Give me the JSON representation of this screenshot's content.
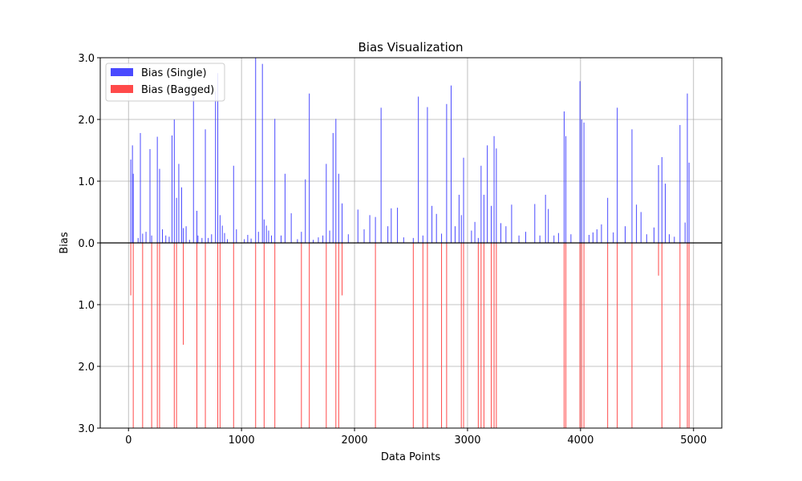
{
  "chart_data": {
    "type": "bar",
    "title": "Bias Visualization",
    "xlabel": "Data Points",
    "ylabel": "Bias",
    "xlim": [
      -250,
      5250
    ],
    "ylim": [
      -3.0,
      3.0
    ],
    "x_ticks": [
      0,
      1000,
      2000,
      3000,
      4000,
      5000
    ],
    "y_ticks": [
      {
        "value": 3.0,
        "label": "3.0"
      },
      {
        "value": 2.0,
        "label": "2.0"
      },
      {
        "value": 1.0,
        "label": "1.0"
      },
      {
        "value": 0.0,
        "label": "0.0"
      },
      {
        "value": -1.0,
        "label": "1.0"
      },
      {
        "value": -2.0,
        "label": "2.0"
      },
      {
        "value": -3.0,
        "label": "3.0"
      }
    ],
    "grid": true,
    "zero_line": true,
    "legend_position": "top-left",
    "legend": [
      {
        "label": "Bias (Single)",
        "color": "#4a4aff"
      },
      {
        "label": "Bias (Bagged)",
        "color": "#ff4a4a"
      }
    ],
    "series": [
      {
        "name": "Bias (Single)",
        "color": "#4a4aff",
        "x": [
          20,
          35,
          42,
          85,
          105,
          125,
          155,
          190,
          205,
          255,
          275,
          300,
          330,
          360,
          385,
          405,
          425,
          445,
          470,
          485,
          510,
          540,
          575,
          605,
          615,
          650,
          680,
          705,
          735,
          770,
          790,
          810,
          830,
          850,
          875,
          930,
          955,
          1025,
          1055,
          1085,
          1125,
          1150,
          1185,
          1200,
          1220,
          1240,
          1265,
          1295,
          1350,
          1385,
          1440,
          1495,
          1530,
          1565,
          1600,
          1635,
          1680,
          1720,
          1750,
          1780,
          1810,
          1835,
          1860,
          1890,
          1945,
          2030,
          2085,
          2135,
          2185,
          2235,
          2295,
          2325,
          2380,
          2435,
          2520,
          2565,
          2605,
          2645,
          2685,
          2725,
          2770,
          2815,
          2855,
          2890,
          2925,
          2945,
          2965,
          3035,
          3065,
          3095,
          3120,
          3145,
          3175,
          3210,
          3235,
          3255,
          3295,
          3340,
          3390,
          3455,
          3515,
          3595,
          3640,
          3690,
          3715,
          3765,
          3805,
          3855,
          3870,
          3915,
          3995,
          4010,
          4030,
          4075,
          4110,
          4145,
          4185,
          4240,
          4290,
          4325,
          4395,
          4455,
          4495,
          4535,
          4585,
          4650,
          4690,
          4720,
          4750,
          4785,
          4830,
          4880,
          4925,
          4945,
          4960
        ],
        "values": [
          1.35,
          1.58,
          1.12,
          0.08,
          1.78,
          0.15,
          0.18,
          1.52,
          0.12,
          1.72,
          1.2,
          0.22,
          0.12,
          0.1,
          1.74,
          2.0,
          0.73,
          1.28,
          0.9,
          0.24,
          0.27,
          0.05,
          2.43,
          0.52,
          0.12,
          0.08,
          1.84,
          0.08,
          0.14,
          2.45,
          2.75,
          0.45,
          0.28,
          0.16,
          0.06,
          1.25,
          0.22,
          0.06,
          0.13,
          0.07,
          3.0,
          0.18,
          2.9,
          0.38,
          0.28,
          0.2,
          0.12,
          2.01,
          0.12,
          1.12,
          0.48,
          0.06,
          0.18,
          1.03,
          2.42,
          0.05,
          0.09,
          0.12,
          1.28,
          0.2,
          1.78,
          2.01,
          1.12,
          0.64,
          0.14,
          0.54,
          0.22,
          0.45,
          0.42,
          2.19,
          0.27,
          0.56,
          0.57,
          0.09,
          0.08,
          2.37,
          0.12,
          2.2,
          0.6,
          0.47,
          0.15,
          2.25,
          2.55,
          0.27,
          0.78,
          0.45,
          1.38,
          0.2,
          0.34,
          0.08,
          1.25,
          0.78,
          1.58,
          0.6,
          1.73,
          1.53,
          0.32,
          0.27,
          0.62,
          0.12,
          0.18,
          0.63,
          0.12,
          0.78,
          0.55,
          0.12,
          0.16,
          2.13,
          1.73,
          0.14,
          2.62,
          2.0,
          1.95,
          0.13,
          0.17,
          0.22,
          0.3,
          0.73,
          0.17,
          2.19,
          0.27,
          1.84,
          0.62,
          0.5,
          0.14,
          0.25,
          1.26,
          1.39,
          0.96,
          0.14,
          0.1,
          1.91,
          0.33,
          2.42,
          1.3
        ]
      },
      {
        "name": "Bias (Bagged)",
        "color": "#ff4a4a",
        "x": [
          20,
          42,
          125,
          205,
          255,
          275,
          405,
          425,
          485,
          605,
          680,
          790,
          810,
          930,
          1125,
          1200,
          1295,
          1530,
          1600,
          1750,
          1835,
          1860,
          1890,
          2185,
          2520,
          2605,
          2645,
          2770,
          2815,
          2945,
          2965,
          3095,
          3120,
          3145,
          3210,
          3235,
          3255,
          3855,
          3870,
          3995,
          4010,
          4030,
          4240,
          4325,
          4455,
          4690,
          4720,
          4880,
          4945,
          4960
        ],
        "values": [
          -0.85,
          -3.0,
          -3.0,
          -3.0,
          -3.0,
          -3.0,
          -3.0,
          -3.0,
          -1.65,
          -3.0,
          -3.0,
          -3.0,
          -3.0,
          -3.0,
          -3.0,
          -3.0,
          -3.0,
          -3.0,
          -3.0,
          -3.0,
          -3.0,
          -3.0,
          -0.85,
          -3.0,
          -3.0,
          -3.0,
          -3.0,
          -3.0,
          -3.0,
          -3.0,
          -3.0,
          -3.0,
          -3.0,
          -3.0,
          -3.0,
          -3.0,
          -3.0,
          -3.0,
          -3.0,
          -3.0,
          -3.0,
          -3.0,
          -3.0,
          -3.0,
          -3.0,
          -0.53,
          -3.0,
          -3.0,
          -3.0,
          -3.0
        ]
      }
    ]
  }
}
